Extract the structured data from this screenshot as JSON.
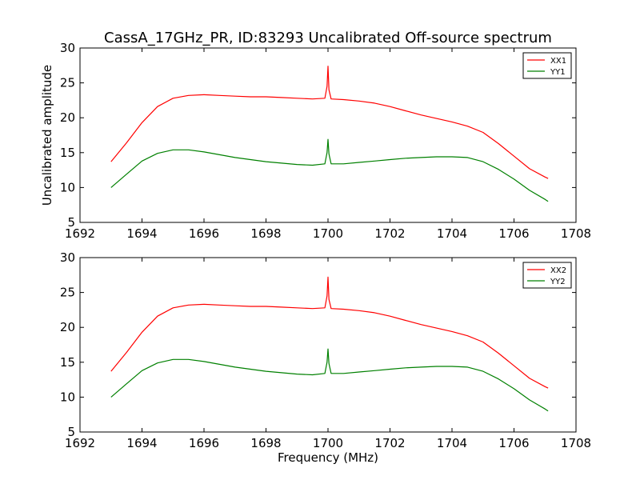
{
  "figure": {
    "title": "CassA_17GHz_PR, ID:83293 Uncalibrated Off-source spectrum",
    "ylabel": "Uncalibrated amplitude",
    "xlabel": "Frequency (MHz)"
  },
  "colors": {
    "red": "#ff0000",
    "green": "#008000"
  },
  "chart_data": [
    {
      "type": "line",
      "title": "CassA_17GHz_PR, ID:83293 Uncalibrated Off-source spectrum",
      "xlabel": "",
      "ylabel": "Uncalibrated amplitude",
      "xlim": [
        1692,
        1708
      ],
      "ylim": [
        5,
        30
      ],
      "xticks": [
        1692,
        1694,
        1696,
        1698,
        1700,
        1702,
        1704,
        1706,
        1708
      ],
      "yticks": [
        5,
        10,
        15,
        20,
        25,
        30
      ],
      "legend": "top-right",
      "grid": false,
      "series": [
        {
          "name": "XX1",
          "color": "#ff0000",
          "x": [
            1693.0,
            1693.5,
            1694.0,
            1694.5,
            1695.0,
            1695.5,
            1696.0,
            1696.5,
            1697.0,
            1697.5,
            1698.0,
            1698.5,
            1699.0,
            1699.5,
            1699.9,
            1699.97,
            1700.0,
            1700.03,
            1700.1,
            1700.5,
            1701.0,
            1701.5,
            1702.0,
            1702.5,
            1703.0,
            1703.5,
            1704.0,
            1704.5,
            1705.0,
            1705.5,
            1706.0,
            1706.5,
            1707.0,
            1707.1
          ],
          "y": [
            13.7,
            16.4,
            19.3,
            21.6,
            22.8,
            23.2,
            23.3,
            23.2,
            23.1,
            23.0,
            23.0,
            22.9,
            22.8,
            22.7,
            22.8,
            24.5,
            27.4,
            24.0,
            22.7,
            22.6,
            22.4,
            22.1,
            21.6,
            21.0,
            20.4,
            19.9,
            19.4,
            18.8,
            17.9,
            16.3,
            14.5,
            12.7,
            11.5,
            11.3
          ]
        },
        {
          "name": "YY1",
          "color": "#008000",
          "x": [
            1693.0,
            1693.5,
            1694.0,
            1694.5,
            1695.0,
            1695.5,
            1696.0,
            1696.5,
            1697.0,
            1697.5,
            1698.0,
            1698.5,
            1699.0,
            1699.5,
            1699.9,
            1699.97,
            1700.0,
            1700.03,
            1700.1,
            1700.5,
            1701.0,
            1701.5,
            1702.0,
            1702.5,
            1703.0,
            1703.5,
            1704.0,
            1704.5,
            1705.0,
            1705.5,
            1706.0,
            1706.5,
            1707.0,
            1707.1
          ],
          "y": [
            10.0,
            11.9,
            13.8,
            14.9,
            15.4,
            15.4,
            15.1,
            14.7,
            14.3,
            14.0,
            13.7,
            13.5,
            13.3,
            13.2,
            13.4,
            15.0,
            16.9,
            14.8,
            13.4,
            13.4,
            13.6,
            13.8,
            14.0,
            14.2,
            14.3,
            14.4,
            14.4,
            14.3,
            13.7,
            12.6,
            11.2,
            9.6,
            8.3,
            8.0
          ]
        }
      ]
    },
    {
      "type": "line",
      "title": "",
      "xlabel": "Frequency (MHz)",
      "ylabel": "",
      "xlim": [
        1692,
        1708
      ],
      "ylim": [
        5,
        30
      ],
      "xticks": [
        1692,
        1694,
        1696,
        1698,
        1700,
        1702,
        1704,
        1706,
        1708
      ],
      "yticks": [
        5,
        10,
        15,
        20,
        25,
        30
      ],
      "legend": "top-right",
      "grid": false,
      "series": [
        {
          "name": "XX2",
          "color": "#ff0000",
          "x": [
            1693.0,
            1693.5,
            1694.0,
            1694.5,
            1695.0,
            1695.5,
            1696.0,
            1696.5,
            1697.0,
            1697.5,
            1698.0,
            1698.5,
            1699.0,
            1699.5,
            1699.9,
            1699.97,
            1700.0,
            1700.03,
            1700.1,
            1700.5,
            1701.0,
            1701.5,
            1702.0,
            1702.5,
            1703.0,
            1703.5,
            1704.0,
            1704.5,
            1705.0,
            1705.5,
            1706.0,
            1706.5,
            1707.0,
            1707.1
          ],
          "y": [
            13.7,
            16.4,
            19.3,
            21.6,
            22.8,
            23.2,
            23.3,
            23.2,
            23.1,
            23.0,
            23.0,
            22.9,
            22.8,
            22.7,
            22.8,
            24.5,
            27.2,
            24.0,
            22.7,
            22.6,
            22.4,
            22.1,
            21.6,
            21.0,
            20.4,
            19.9,
            19.4,
            18.8,
            17.9,
            16.3,
            14.5,
            12.7,
            11.5,
            11.3
          ]
        },
        {
          "name": "YY2",
          "color": "#008000",
          "x": [
            1693.0,
            1693.5,
            1694.0,
            1694.5,
            1695.0,
            1695.5,
            1696.0,
            1696.5,
            1697.0,
            1697.5,
            1698.0,
            1698.5,
            1699.0,
            1699.5,
            1699.9,
            1699.97,
            1700.0,
            1700.03,
            1700.1,
            1700.5,
            1701.0,
            1701.5,
            1702.0,
            1702.5,
            1703.0,
            1703.5,
            1704.0,
            1704.5,
            1705.0,
            1705.5,
            1706.0,
            1706.5,
            1707.0,
            1707.1
          ],
          "y": [
            10.0,
            11.9,
            13.8,
            14.9,
            15.4,
            15.4,
            15.1,
            14.7,
            14.3,
            14.0,
            13.7,
            13.5,
            13.3,
            13.2,
            13.4,
            15.0,
            16.9,
            14.8,
            13.4,
            13.4,
            13.6,
            13.8,
            14.0,
            14.2,
            14.3,
            14.4,
            14.4,
            14.3,
            13.7,
            12.6,
            11.2,
            9.6,
            8.3,
            8.0
          ]
        }
      ]
    }
  ]
}
